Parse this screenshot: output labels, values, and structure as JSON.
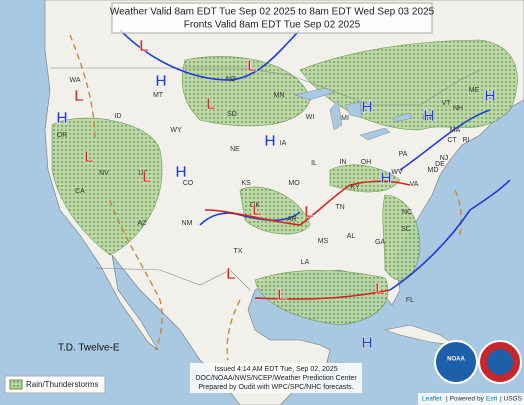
{
  "header": {
    "line1": "Weather Valid 8am EDT Tue Sep 02 2025 to 8am EDT Wed Sep 03 2025",
    "line2": "Fronts Valid 8am EDT Tue Sep 02 2025"
  },
  "states": [
    "WA",
    "OR",
    "ID",
    "MT",
    "ND",
    "SD",
    "MN",
    "WY",
    "WI",
    "MI",
    "NV",
    "UT",
    "CO",
    "NE",
    "IA",
    "IL",
    "IN",
    "OH",
    "PA",
    "NY",
    "VT",
    "NH",
    "ME",
    "MA",
    "CT",
    "RI",
    "NJ",
    "DE",
    "MD",
    "WV",
    "VA",
    "KY",
    "KS",
    "MO",
    "CA",
    "AZ",
    "NM",
    "OK",
    "AR",
    "TN",
    "NC",
    "SC",
    "GA",
    "AL",
    "MS",
    "LA",
    "TX",
    "FL"
  ],
  "pressure_symbols": {
    "high": "H",
    "low": "L"
  },
  "storm": "T.D. Twelve-E",
  "legend": {
    "label": "Rain/Thunderstorms"
  },
  "footer": {
    "issued": "Issued  4:14 AM EDT  Tue, Sep 02, 2025",
    "office": "DOC/NOAA/NWS/NCEP/Weather Prediction Center",
    "prepared": "Prepared by Oudit with WPC/SPC/NHC forecasts."
  },
  "logos": {
    "noaa": "NOAA"
  },
  "attribution": {
    "leaflet": "Leaflet",
    "sep": "| Powered by",
    "esri": "Esri",
    "usgs": "| USGS"
  }
}
